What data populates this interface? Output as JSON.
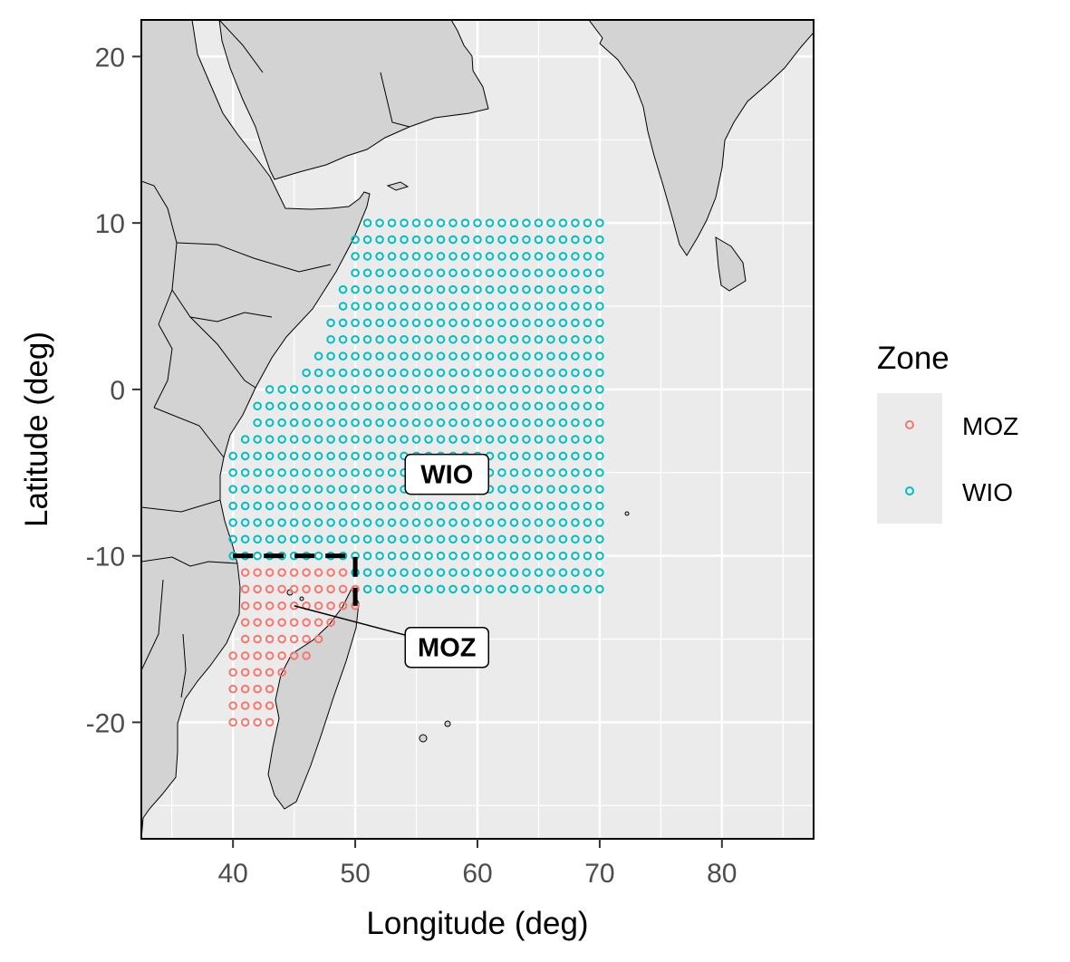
{
  "chart_data": {
    "type": "scatter",
    "xlabel": "Longitude (deg)",
    "ylabel": "Latitude (deg)",
    "xlim": [
      32.5,
      87.5
    ],
    "ylim": [
      -27.0,
      22.2
    ],
    "x_ticks": [
      40,
      50,
      60,
      70,
      80
    ],
    "y_ticks": [
      20,
      10,
      0,
      -10,
      -20
    ],
    "x_tick_labels": [
      "40",
      "50",
      "60",
      "70",
      "80"
    ],
    "y_tick_labels": [
      "20",
      "10",
      "0",
      "-10",
      "-20"
    ],
    "grid": true,
    "panel_background": "#ebebeb",
    "land_color": "#d3d3d3",
    "legend": {
      "title": "Zone",
      "position": "right",
      "entries": [
        {
          "label": "MOZ",
          "color": "#f8766d"
        },
        {
          "label": "WIO",
          "color": "#00bfc4"
        }
      ]
    },
    "grid_step_deg": 1,
    "series": [
      {
        "name": "MOZ",
        "color": "#f8766d",
        "marker": "open-circle",
        "rows": [
          {
            "lat": -11,
            "lon_start": 41,
            "lon_end": 49
          },
          {
            "lat": -12,
            "lon_start": 41,
            "lon_end": 50
          },
          {
            "lat": -13,
            "lon_start": 41,
            "lon_end": 50
          },
          {
            "lat": -14,
            "lon_start": 41,
            "lon_end": 48
          },
          {
            "lat": -15,
            "lon_start": 41,
            "lon_end": 47
          },
          {
            "lat": -16,
            "lon_start": 40,
            "lon_end": 46
          },
          {
            "lat": -17,
            "lon_start": 40,
            "lon_end": 44
          },
          {
            "lat": -18,
            "lon_start": 40,
            "lon_end": 43
          },
          {
            "lat": -19,
            "lon_start": 40,
            "lon_end": 43
          },
          {
            "lat": -20,
            "lon_start": 40,
            "lon_end": 43
          }
        ]
      },
      {
        "name": "WIO",
        "color": "#00bfc4",
        "marker": "open-circle",
        "rows": [
          {
            "lat": 10,
            "lon_start": 51,
            "lon_end": 70
          },
          {
            "lat": 9,
            "lon_start": 50,
            "lon_end": 70
          },
          {
            "lat": 8,
            "lon_start": 50,
            "lon_end": 70
          },
          {
            "lat": 7,
            "lon_start": 50,
            "lon_end": 70
          },
          {
            "lat": 6,
            "lon_start": 49,
            "lon_end": 70
          },
          {
            "lat": 5,
            "lon_start": 49,
            "lon_end": 70
          },
          {
            "lat": 4,
            "lon_start": 48,
            "lon_end": 70
          },
          {
            "lat": 3,
            "lon_start": 48,
            "lon_end": 70
          },
          {
            "lat": 2,
            "lon_start": 47,
            "lon_end": 70
          },
          {
            "lat": 1,
            "lon_start": 46,
            "lon_end": 70
          },
          {
            "lat": 0,
            "lon_start": 43,
            "lon_end": 70
          },
          {
            "lat": -1,
            "lon_start": 42,
            "lon_end": 70
          },
          {
            "lat": -2,
            "lon_start": 42,
            "lon_end": 70
          },
          {
            "lat": -3,
            "lon_start": 41,
            "lon_end": 70
          },
          {
            "lat": -4,
            "lon_start": 40,
            "lon_end": 70
          },
          {
            "lat": -5,
            "lon_start": 40,
            "lon_end": 70
          },
          {
            "lat": -6,
            "lon_start": 40,
            "lon_end": 70
          },
          {
            "lat": -7,
            "lon_start": 40,
            "lon_end": 70
          },
          {
            "lat": -8,
            "lon_start": 40,
            "lon_end": 70
          },
          {
            "lat": -9,
            "lon_start": 40,
            "lon_end": 70
          },
          {
            "lat": -10,
            "lon_start": 40,
            "lon_end": 70
          },
          {
            "lat": -11,
            "lon_start": 50,
            "lon_end": 70
          },
          {
            "lat": -12,
            "lon_start": 51,
            "lon_end": 70
          }
        ]
      }
    ],
    "boundary_line": {
      "style": "dashed",
      "points": [
        [
          40,
          -10
        ],
        [
          50,
          -10
        ],
        [
          50,
          -13
        ]
      ]
    },
    "annotations": [
      {
        "text": "WIO",
        "lon": 57.5,
        "lat": -5.1
      },
      {
        "text": "MOZ",
        "lon": 57.5,
        "lat": -15.5,
        "leader_to": [
          45,
          -13
        ]
      }
    ]
  }
}
